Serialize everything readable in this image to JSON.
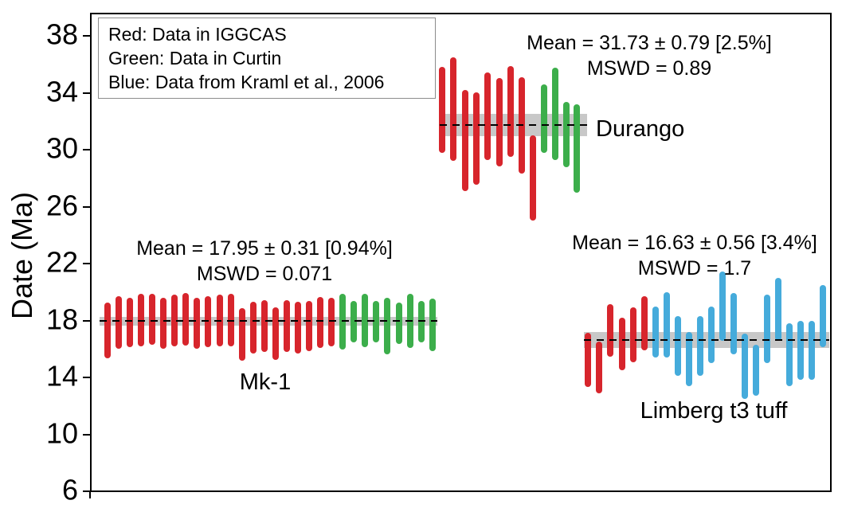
{
  "figure": {
    "y_axis_label": "Date (Ma)"
  },
  "legend": {
    "lines": [
      "Red: Data in IGGCAS",
      "Green: Data in Curtin",
      "Blue: Data from Kraml et al., 2006"
    ]
  },
  "colors": {
    "red": "#d7252c",
    "green": "#3cae4b",
    "blue": "#45abdb",
    "band": "#c8c8c8",
    "axis": "#000000"
  },
  "chart_data": {
    "type": "error-bar",
    "title": "",
    "ylabel": "Date (Ma)",
    "y_axis": {
      "range": [
        6,
        38
      ],
      "ticks": [
        38,
        34,
        30,
        26,
        22,
        18,
        14,
        10,
        6
      ]
    },
    "grid": false,
    "groups": [
      {
        "name": "Mk-1",
        "mean": 17.95,
        "uncertainty": 0.31,
        "uncertainty_pct": "0.94%",
        "mswd": "0.071",
        "mean_label": "Mean = 17.95 ± 0.31 [0.94%]",
        "mswd_label": "MSWD = 0.071",
        "series": [
          {
            "color": "red",
            "source": "Data in IGGCAS",
            "bars": [
              {
                "c": 17.3,
                "e": 1.95
              },
              {
                "c": 17.85,
                "e": 1.85
              },
              {
                "c": 17.85,
                "e": 1.75
              },
              {
                "c": 18.05,
                "e": 1.85
              },
              {
                "c": 18.1,
                "e": 1.8
              },
              {
                "c": 17.8,
                "e": 1.8
              },
              {
                "c": 18.0,
                "e": 1.8
              },
              {
                "c": 18.1,
                "e": 1.85
              },
              {
                "c": 17.8,
                "e": 1.8
              },
              {
                "c": 17.9,
                "e": 1.8
              },
              {
                "c": 18.0,
                "e": 1.8
              },
              {
                "c": 18.05,
                "e": 1.85
              },
              {
                "c": 17.0,
                "e": 1.85
              },
              {
                "c": 17.5,
                "e": 1.8
              },
              {
                "c": 17.6,
                "e": 1.8
              },
              {
                "c": 17.1,
                "e": 1.85
              },
              {
                "c": 17.6,
                "e": 1.8
              },
              {
                "c": 17.5,
                "e": 1.8
              },
              {
                "c": 17.6,
                "e": 1.75
              },
              {
                "c": 17.85,
                "e": 1.8
              },
              {
                "c": 17.9,
                "e": 1.7
              }
            ]
          },
          {
            "color": "green",
            "source": "Data in Curtin",
            "bars": [
              {
                "c": 17.9,
                "e": 1.95
              },
              {
                "c": 17.9,
                "e": 1.45
              },
              {
                "c": 18.0,
                "e": 1.9
              },
              {
                "c": 17.9,
                "e": 1.45
              },
              {
                "c": 17.6,
                "e": 2.0
              },
              {
                "c": 17.8,
                "e": 1.45
              },
              {
                "c": 17.95,
                "e": 1.9
              },
              {
                "c": 17.9,
                "e": 1.45
              },
              {
                "c": 17.7,
                "e": 1.85
              }
            ]
          }
        ]
      },
      {
        "name": "Durango",
        "mean": 31.73,
        "uncertainty": 0.79,
        "uncertainty_pct": "2.5%",
        "mswd": "0.89",
        "mean_label": "Mean = 31.73 ± 0.79 [2.5%]",
        "mswd_label": "MSWD = 0.89",
        "series": [
          {
            "color": "red",
            "source": "Data in IGGCAS",
            "bars": [
              {
                "c": 32.8,
                "e": 3.0
              },
              {
                "c": 32.85,
                "e": 3.65
              },
              {
                "c": 30.65,
                "e": 3.55
              },
              {
                "c": 30.8,
                "e": 3.25
              },
              {
                "c": 32.35,
                "e": 3.1
              },
              {
                "c": 31.95,
                "e": 3.1
              },
              {
                "c": 32.7,
                "e": 3.2
              },
              {
                "c": 31.7,
                "e": 3.4
              },
              {
                "c": 28.0,
                "e": 3.0
              }
            ]
          },
          {
            "color": "green",
            "source": "Data in Curtin",
            "bars": [
              {
                "c": 32.2,
                "e": 2.4
              },
              {
                "c": 32.5,
                "e": 3.25
              },
              {
                "c": 31.05,
                "e": 2.3
              },
              {
                "c": 30.1,
                "e": 3.1
              }
            ]
          }
        ]
      },
      {
        "name": "Limberg t3 tuff",
        "mean": 16.63,
        "uncertainty": 0.56,
        "uncertainty_pct": "3.4%",
        "mswd": "1.7",
        "mean_label": "Mean = 16.63 ± 0.56 [3.4%]",
        "mswd_label": "MSWD = 1.7",
        "series": [
          {
            "color": "red",
            "source": "Data in IGGCAS",
            "bars": [
              {
                "c": 15.25,
                "e": 1.9
              },
              {
                "c": 14.7,
                "e": 1.8
              },
              {
                "c": 17.3,
                "e": 1.85
              },
              {
                "c": 16.35,
                "e": 1.85
              },
              {
                "c": 17.0,
                "e": 1.95
              },
              {
                "c": 17.8,
                "e": 1.9
              }
            ]
          },
          {
            "color": "blue",
            "source": "Data from Kraml et al., 2006",
            "bars": [
              {
                "c": 17.2,
                "e": 1.8
              },
              {
                "c": 17.7,
                "e": 2.3
              },
              {
                "c": 16.2,
                "e": 2.1
              },
              {
                "c": 15.3,
                "e": 1.9
              },
              {
                "c": 16.2,
                "e": 2.1
              },
              {
                "c": 17.0,
                "e": 2.0
              },
              {
                "c": 19.0,
                "e": 2.45
              },
              {
                "c": 17.8,
                "e": 2.15
              },
              {
                "c": 14.8,
                "e": 2.3
              },
              {
                "c": 14.5,
                "e": 1.8
              },
              {
                "c": 17.4,
                "e": 2.4
              },
              {
                "c": 18.8,
                "e": 2.2
              },
              {
                "c": 15.6,
                "e": 2.2
              },
              {
                "c": 15.9,
                "e": 2.05
              },
              {
                "c": 15.9,
                "e": 2.05
              },
              {
                "c": 18.3,
                "e": 2.2
              }
            ]
          }
        ]
      }
    ]
  }
}
